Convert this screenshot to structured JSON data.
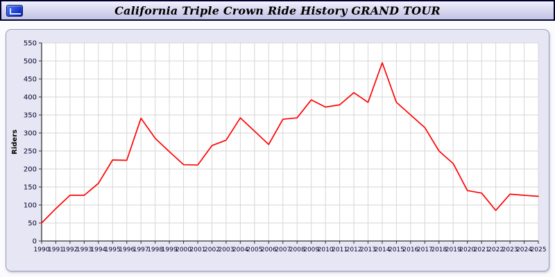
{
  "header": {
    "title": "California Triple Crown Ride History GRAND TOUR"
  },
  "chart_data": {
    "type": "line",
    "title": "California Triple Crown Ride History GRAND TOUR",
    "xlabel": "",
    "ylabel": "Riders",
    "ylim": [
      0,
      550
    ],
    "ytick_step": 50,
    "grid": true,
    "legend": "none",
    "plot_bg": "#ffffff",
    "grid_color": "#d6d6d6",
    "axis_color": "#333333",
    "tick_label_color": "#000028",
    "x": [
      1990,
      1991,
      1992,
      1993,
      1994,
      1995,
      1996,
      1997,
      1998,
      1999,
      2000,
      2001,
      2002,
      2003,
      2004,
      2005,
      2006,
      2007,
      2008,
      2009,
      2010,
      2011,
      2012,
      2013,
      2014,
      2015,
      2016,
      2017,
      2018,
      2019,
      2020,
      2021,
      2022,
      2023,
      2024,
      2025
    ],
    "series": [
      {
        "name": "Riders",
        "color": "#ff0000",
        "values": [
          50,
          90,
          127,
          127,
          160,
          225,
          224,
          341,
          285,
          248,
          212,
          211,
          265,
          280,
          342,
          305,
          268,
          338,
          342,
          392,
          372,
          378,
          412,
          385,
          495,
          385,
          350,
          315,
          250,
          215,
          140,
          133,
          85,
          130,
          127,
          124
        ]
      }
    ]
  }
}
